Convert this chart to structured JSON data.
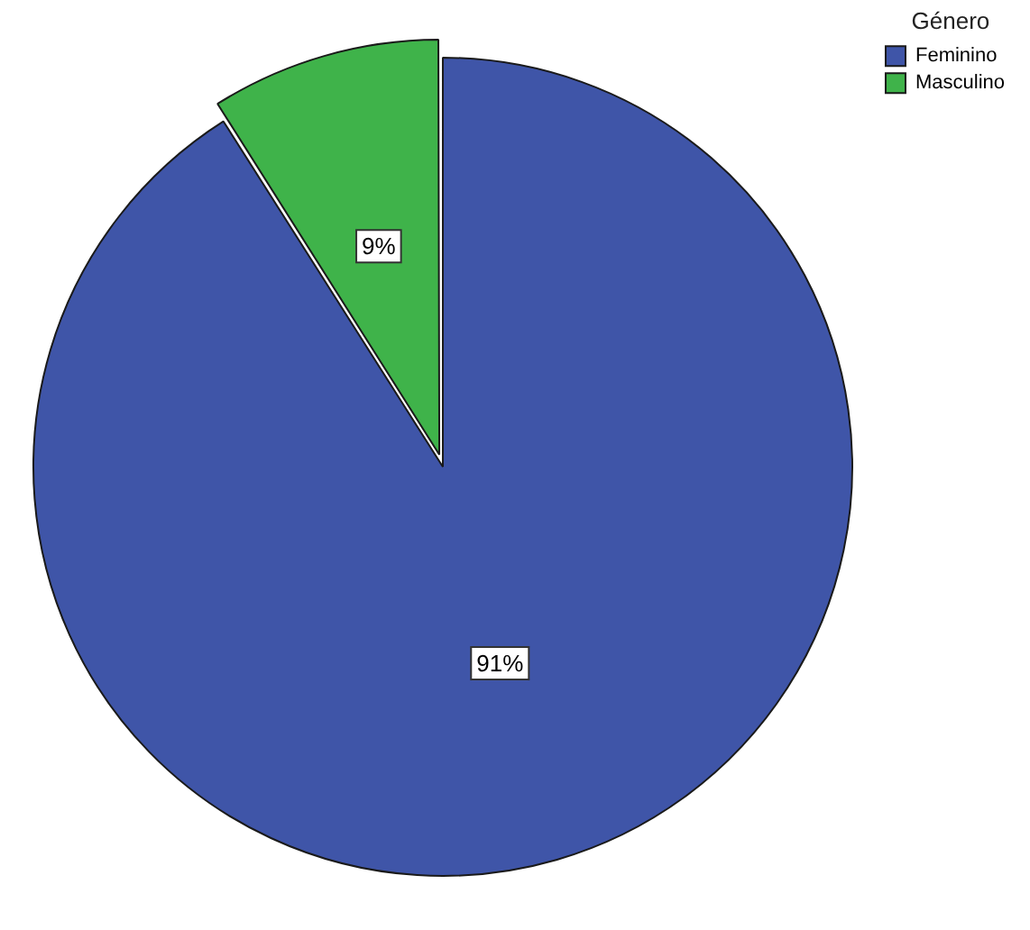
{
  "chart_data": {
    "type": "pie",
    "legend_title": "Género",
    "categories": [
      "Feminino",
      "Masculino"
    ],
    "values": [
      91,
      9
    ],
    "colors": [
      "#3f55a8",
      "#3fb34a"
    ],
    "value_labels": [
      "91%",
      "9%"
    ],
    "legend": "top right"
  }
}
